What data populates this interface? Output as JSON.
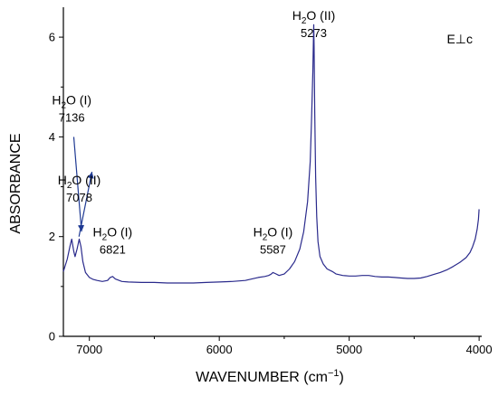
{
  "chart_data": {
    "type": "line",
    "xlabel": "WAVENUMBER (cm",
    "xlabel_sup": "−1",
    "xlabel_end": ")",
    "ylabel": "ABSORBANCE",
    "polarization": "E⊥c",
    "xlim": [
      7200,
      3980
    ],
    "ylim": [
      0,
      6.6
    ],
    "x_reversed": true,
    "xticks": [
      7000,
      6000,
      5000,
      4000
    ],
    "yticks": [
      0,
      2,
      4,
      6
    ],
    "line_color": "#2a2a8c",
    "arrow_color": "#1f3a93",
    "series": [
      {
        "x": [
          7200,
          7170,
          7150,
          7136,
          7120,
          7110,
          7095,
          7078,
          7065,
          7050,
          7030,
          7000,
          6970,
          6940,
          6900,
          6860,
          6840,
          6821,
          6800,
          6750,
          6700,
          6600,
          6500,
          6400,
          6300,
          6200,
          6100,
          6000,
          5900,
          5800,
          5750,
          5700,
          5650,
          5620,
          5600,
          5587,
          5570,
          5540,
          5500,
          5460,
          5420,
          5380,
          5350,
          5320,
          5300,
          5290,
          5280,
          5275,
          5273,
          5270,
          5265,
          5258,
          5250,
          5240,
          5225,
          5200,
          5170,
          5130,
          5100,
          5050,
          5000,
          4950,
          4900,
          4850,
          4800,
          4750,
          4700,
          4650,
          4600,
          4550,
          4500,
          4450,
          4400,
          4350,
          4300,
          4250,
          4200,
          4150,
          4100,
          4070,
          4050,
          4030,
          4015,
          4005,
          4000
        ],
        "y": [
          1.3,
          1.55,
          1.8,
          1.95,
          1.7,
          1.6,
          1.75,
          1.95,
          1.8,
          1.5,
          1.28,
          1.18,
          1.14,
          1.12,
          1.1,
          1.12,
          1.18,
          1.2,
          1.15,
          1.1,
          1.09,
          1.08,
          1.08,
          1.07,
          1.07,
          1.07,
          1.08,
          1.09,
          1.1,
          1.12,
          1.15,
          1.18,
          1.2,
          1.22,
          1.25,
          1.28,
          1.26,
          1.22,
          1.25,
          1.35,
          1.5,
          1.75,
          2.1,
          2.7,
          3.5,
          4.3,
          5.3,
          6.0,
          6.25,
          5.8,
          4.5,
          3.2,
          2.4,
          1.9,
          1.6,
          1.45,
          1.35,
          1.3,
          1.25,
          1.22,
          1.21,
          1.21,
          1.22,
          1.22,
          1.2,
          1.19,
          1.19,
          1.18,
          1.17,
          1.16,
          1.16,
          1.17,
          1.2,
          1.24,
          1.28,
          1.33,
          1.4,
          1.48,
          1.58,
          1.68,
          1.8,
          1.95,
          2.15,
          2.35,
          2.55
        ]
      }
    ],
    "annotations": [
      {
        "species": "H",
        "sub": "2",
        "rest": "O (II)",
        "value": "5273",
        "x": 5273,
        "y": 6.35
      },
      {
        "species": "H",
        "sub": "2",
        "rest": "O (I)",
        "value": "7136",
        "x": 7136,
        "y": 4.65
      },
      {
        "species": "H",
        "sub": "2",
        "rest": "O (II)",
        "value": "7078",
        "x": 7078,
        "y": 3.05
      },
      {
        "species": "H",
        "sub": "2",
        "rest": "O (I)",
        "value": "6821",
        "x": 6821,
        "y": 2.0
      },
      {
        "species": "H",
        "sub": "2",
        "rest": "O (I)",
        "value": "5587",
        "x": 5587,
        "y": 2.0
      }
    ],
    "arrows": [
      {
        "x0": 7120,
        "y0": 4.0,
        "x1": 7060,
        "y1": 2.1
      },
      {
        "x0": 7080,
        "y0": 2.0,
        "x1": 6980,
        "y1": 3.3
      }
    ]
  }
}
